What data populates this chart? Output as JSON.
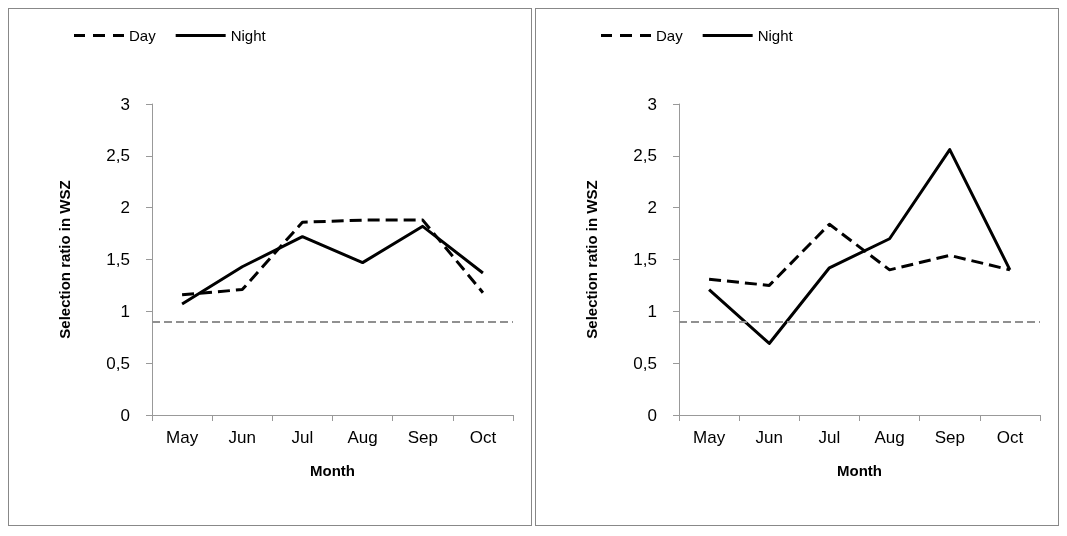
{
  "chart_data": [
    {
      "type": "line",
      "xlabel": "Month",
      "ylabel": "Selection ratio in WSZ",
      "categories": [
        "May",
        "Jun",
        "Jul",
        "Aug",
        "Sep",
        "Oct"
      ],
      "series": [
        {
          "name": "Day",
          "color": "#000000",
          "line_style": "dashed",
          "values": [
            1.16,
            1.21,
            1.86,
            1.88,
            1.88,
            1.18
          ]
        },
        {
          "name": "Night",
          "color": "#000000",
          "line_style": "solid",
          "values": [
            1.07,
            1.43,
            1.72,
            1.47,
            1.82,
            1.37
          ]
        }
      ],
      "ylim": [
        0,
        3
      ],
      "yticks": [
        0,
        {
          "value": 0.5,
          "label": "0,5"
        },
        1,
        {
          "value": 1.5,
          "label": "1,5"
        },
        2,
        {
          "value": 2.5,
          "label": "2,5"
        },
        3
      ],
      "ref_lines": [
        {
          "axis": "y",
          "value": 0.9,
          "color": "#909090",
          "line_style": "dashed"
        }
      ],
      "grid": false,
      "legend": "top left",
      "marker": "none"
    },
    {
      "type": "line",
      "xlabel": "Month",
      "ylabel": "Selection ratio in WSZ",
      "categories": [
        "May",
        "Jun",
        "Jul",
        "Aug",
        "Sep",
        "Oct"
      ],
      "series": [
        {
          "name": "Day",
          "color": "#000000",
          "line_style": "dashed",
          "values": [
            1.31,
            1.25,
            1.84,
            1.4,
            1.54,
            1.4
          ]
        },
        {
          "name": "Night",
          "color": "#000000",
          "line_style": "solid",
          "values": [
            1.21,
            0.69,
            1.42,
            1.7,
            2.56,
            1.4
          ]
        }
      ],
      "ylim": [
        0,
        3
      ],
      "yticks": [
        0,
        {
          "value": 0.5,
          "label": "0,5"
        },
        1,
        {
          "value": 1.5,
          "label": "1,5"
        },
        2,
        {
          "value": 2.5,
          "label": "2,5"
        },
        3
      ],
      "ref_lines": [
        {
          "axis": "y",
          "value": 0.9,
          "color": "#909090",
          "line_style": "dashed"
        }
      ],
      "grid": false,
      "legend": "top left",
      "marker": "none"
    }
  ]
}
